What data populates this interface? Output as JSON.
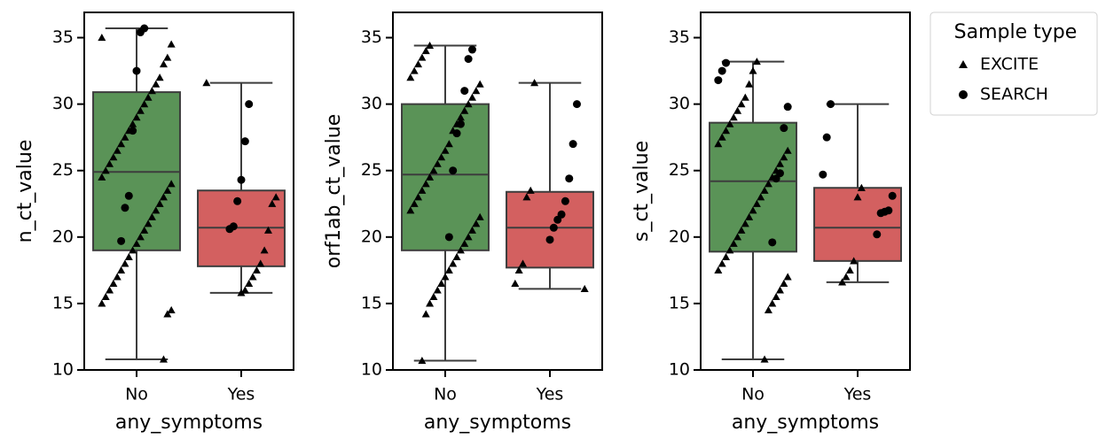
{
  "chart_data": [
    {
      "type": "box",
      "ylabel": "n_ct_value",
      "xlabel": "any_symptoms",
      "categories": [
        "No",
        "Yes"
      ],
      "ylim": [
        10,
        36.9
      ],
      "yticks": [
        10,
        15,
        20,
        25,
        30,
        35
      ],
      "boxes": [
        {
          "color": "#5a9357",
          "low": 10.8,
          "q1": 19.0,
          "median": 24.9,
          "q3": 30.9,
          "high": 35.7
        },
        {
          "color": "#d36060",
          "low": 15.8,
          "q1": 17.8,
          "median": 20.7,
          "q3": 23.5,
          "high": 31.6
        }
      ],
      "series": [
        {
          "name": "EXCITE",
          "marker": "triangle",
          "values": [
            [
              35.0,
              34.5,
              33.5,
              33.0,
              32.0,
              31.5,
              31.0,
              30.5,
              30.0,
              29.5,
              29.0,
              28.5,
              28.0,
              27.5,
              27.0,
              26.5,
              26.0,
              25.5,
              25.0,
              24.5,
              24.0,
              23.5,
              23.0,
              22.5,
              22.0,
              21.5,
              21.0,
              20.5,
              20.0,
              19.5,
              19.0,
              18.5,
              18.0,
              17.5,
              17.0,
              16.5,
              16.0,
              15.5,
              15.0,
              14.5,
              14.2,
              10.8
            ],
            [
              31.6,
              23.0,
              22.5,
              20.5,
              19.0,
              18.0,
              17.5,
              17.0,
              16.5,
              16.0,
              15.8
            ]
          ]
        },
        {
          "name": "SEARCH",
          "marker": "circle",
          "values": [
            [
              35.7,
              35.4,
              32.5,
              28.0,
              23.1,
              22.2,
              19.7
            ],
            [
              30.0,
              27.2,
              24.3,
              22.7,
              20.8,
              20.6
            ]
          ]
        }
      ]
    },
    {
      "type": "box",
      "ylabel": "orf1ab_ct_value",
      "xlabel": "any_symptoms",
      "categories": [
        "No",
        "Yes"
      ],
      "ylim": [
        10,
        36.9
      ],
      "yticks": [
        10,
        15,
        20,
        25,
        30,
        35
      ],
      "boxes": [
        {
          "color": "#5a9357",
          "low": 10.7,
          "q1": 19.0,
          "median": 24.7,
          "q3": 30.0,
          "high": 34.4
        },
        {
          "color": "#d36060",
          "low": 16.1,
          "q1": 17.7,
          "median": 20.7,
          "q3": 23.4,
          "high": 31.6
        }
      ],
      "series": [
        {
          "name": "EXCITE",
          "marker": "triangle",
          "values": [
            [
              34.4,
              34.0,
              33.5,
              33.0,
              32.5,
              32.0,
              31.5,
              31.0,
              30.5,
              30.0,
              29.5,
              29.0,
              28.5,
              28.0,
              27.0,
              26.5,
              26.0,
              25.5,
              25.0,
              24.5,
              24.0,
              23.5,
              23.0,
              22.5,
              22.0,
              21.5,
              21.0,
              20.5,
              20.0,
              19.5,
              19.0,
              18.5,
              18.0,
              17.5,
              17.0,
              16.5,
              16.0,
              15.5,
              15.0,
              14.2,
              10.7
            ],
            [
              31.6,
              23.5,
              23.0,
              18.0,
              17.5,
              16.5,
              16.1
            ]
          ]
        },
        {
          "name": "SEARCH",
          "marker": "circle",
          "values": [
            [
              34.1,
              33.4,
              31.0,
              28.5,
              27.8,
              25.0,
              20.0
            ],
            [
              30.0,
              27.0,
              24.4,
              22.7,
              21.7,
              21.3,
              20.7,
              19.8
            ]
          ]
        }
      ]
    },
    {
      "type": "box",
      "ylabel": "s_ct_value",
      "xlabel": "any_symptoms",
      "categories": [
        "No",
        "Yes"
      ],
      "ylim": [
        10,
        36.9
      ],
      "yticks": [
        10,
        15,
        20,
        25,
        30,
        35
      ],
      "boxes": [
        {
          "color": "#5a9357",
          "low": 10.8,
          "q1": 18.9,
          "median": 24.2,
          "q3": 28.6,
          "high": 33.2
        },
        {
          "color": "#d36060",
          "low": 16.6,
          "q1": 18.2,
          "median": 20.7,
          "q3": 23.7,
          "high": 30.0
        }
      ],
      "series": [
        {
          "name": "EXCITE",
          "marker": "triangle",
          "values": [
            [
              33.2,
              32.5,
              31.5,
              30.5,
              30.0,
              29.5,
              29.0,
              28.5,
              28.0,
              27.5,
              27.0,
              26.5,
              26.0,
              25.5,
              25.0,
              24.5,
              24.0,
              23.5,
              23.0,
              22.5,
              22.0,
              21.5,
              21.0,
              20.5,
              20.0,
              19.5,
              19.0,
              18.5,
              18.0,
              17.5,
              17.0,
              16.5,
              16.0,
              15.5,
              15.0,
              14.5,
              10.8
            ],
            [
              23.7,
              23.0,
              18.2,
              17.5,
              17.0,
              16.6
            ]
          ]
        },
        {
          "name": "SEARCH",
          "marker": "circle",
          "values": [
            [
              33.1,
              32.5,
              31.8,
              29.8,
              28.2,
              24.8,
              24.4,
              19.6
            ],
            [
              30.0,
              27.5,
              24.7,
              23.1,
              22.0,
              21.9,
              21.8,
              20.2
            ]
          ]
        }
      ]
    }
  ],
  "legend": {
    "title": "Sample type"
  }
}
